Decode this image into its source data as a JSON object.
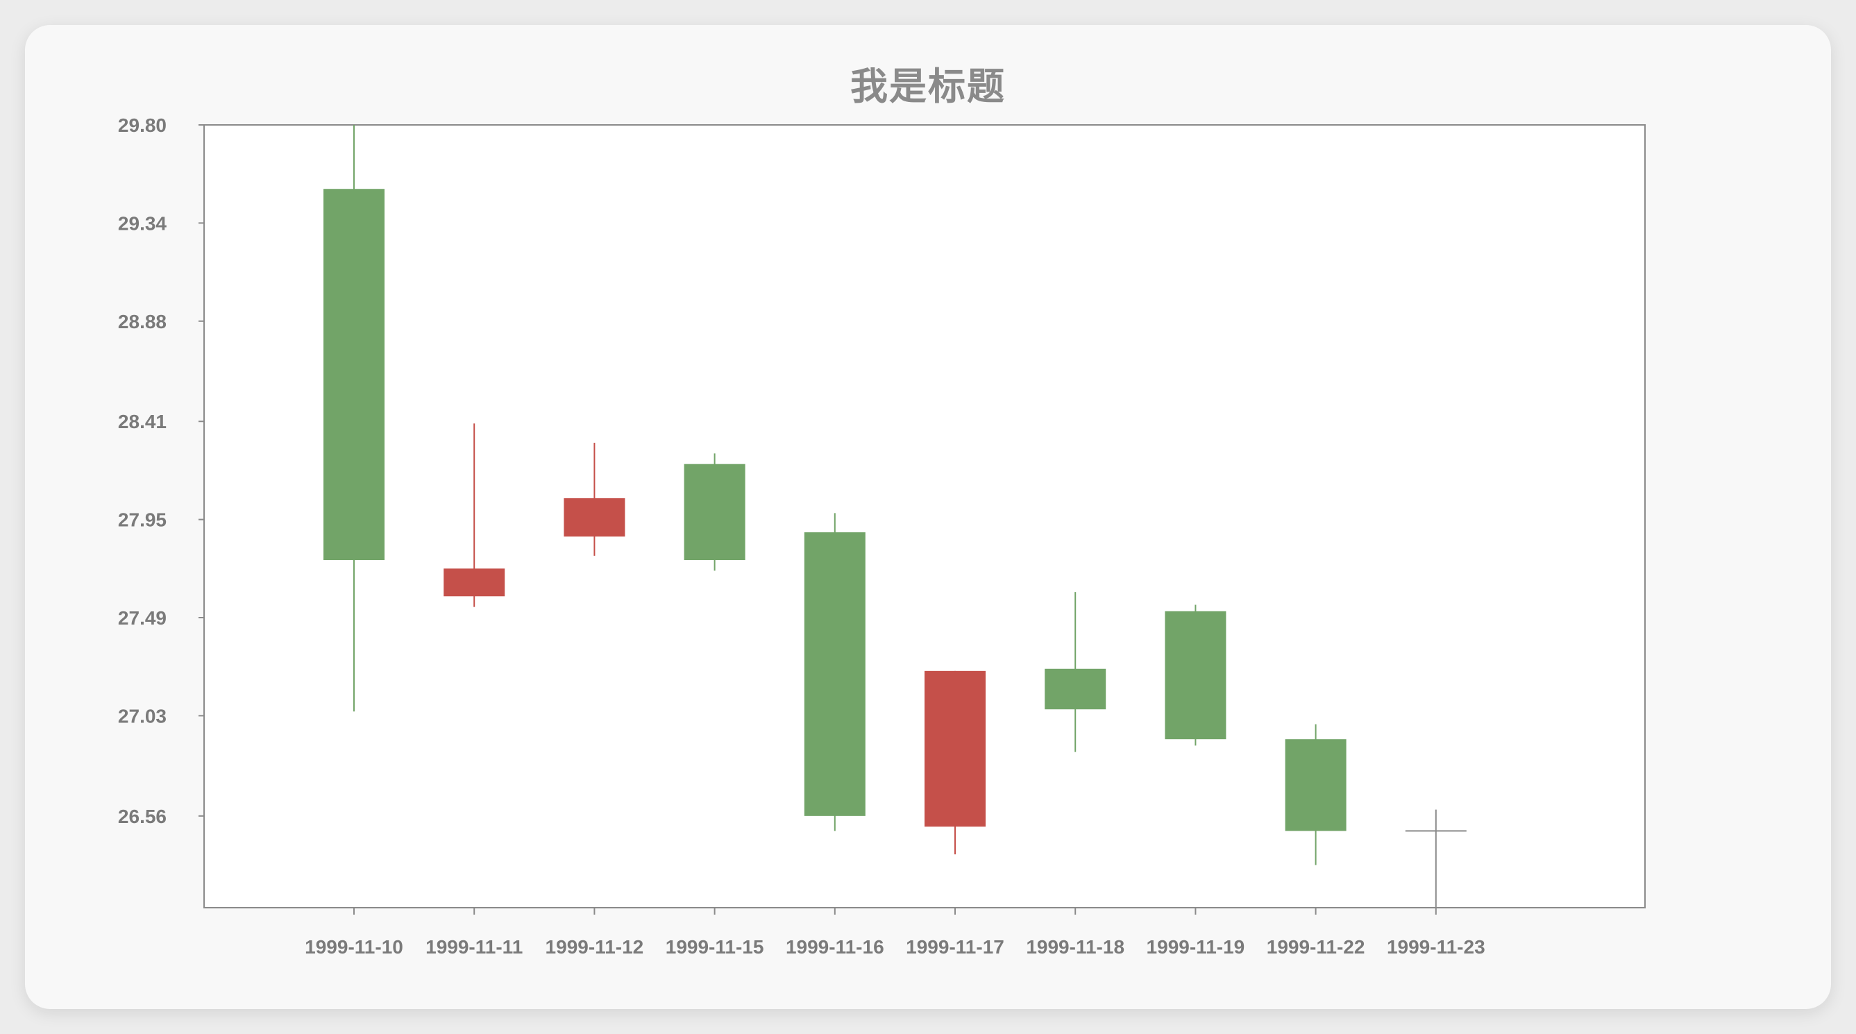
{
  "chart_data": {
    "type": "candlestick",
    "title": "我是标题",
    "xlabel": "",
    "ylabel": "",
    "y_tick_labels": [
      "29.80",
      "29.34",
      "28.88",
      "28.41",
      "27.95",
      "27.49",
      "27.03",
      "26.56"
    ],
    "ylim": [
      26.13,
      29.8
    ],
    "grid": false,
    "colors": {
      "up": "#c5504a",
      "down": "#72a468",
      "flat": "#8a8a8a",
      "axis": "#8a8a8a",
      "plot_bg": "#ffffff"
    },
    "categories": [
      "1999-11-10",
      "1999-11-11",
      "1999-11-12",
      "1999-11-15",
      "1999-11-16",
      "1999-11-17",
      "1999-11-18",
      "1999-11-19",
      "1999-11-22",
      "1999-11-23"
    ],
    "ohlc": [
      {
        "open": 29.5,
        "high": 29.8,
        "low": 27.05,
        "close": 27.76
      },
      {
        "open": 27.59,
        "high": 28.4,
        "low": 27.54,
        "close": 27.72
      },
      {
        "open": 27.87,
        "high": 28.31,
        "low": 27.78,
        "close": 28.05
      },
      {
        "open": 28.21,
        "high": 28.26,
        "low": 27.71,
        "close": 27.76
      },
      {
        "open": 27.89,
        "high": 27.98,
        "low": 26.49,
        "close": 26.56
      },
      {
        "open": 26.51,
        "high": 27.24,
        "low": 26.38,
        "close": 27.24
      },
      {
        "open": 27.25,
        "high": 27.61,
        "low": 26.86,
        "close": 27.06
      },
      {
        "open": 27.52,
        "high": 27.55,
        "low": 26.89,
        "close": 26.92
      },
      {
        "open": 26.92,
        "high": 26.99,
        "low": 26.33,
        "close": 26.49
      },
      {
        "open": 26.49,
        "high": 26.59,
        "low": 26.13,
        "close": 26.49
      }
    ]
  }
}
